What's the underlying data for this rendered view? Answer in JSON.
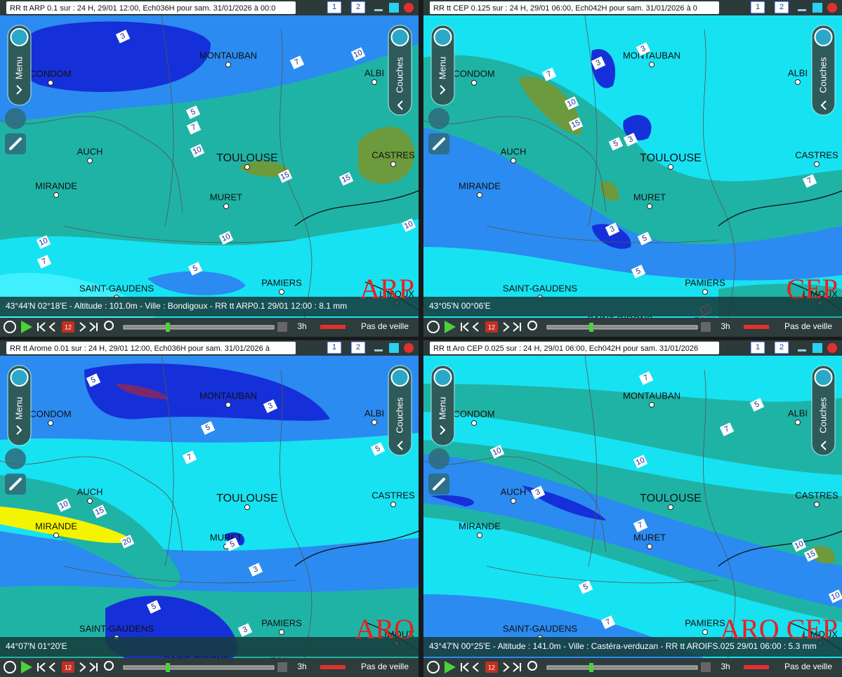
{
  "menu": "Menu",
  "layers": "Couches",
  "window_buttons": [
    "1",
    "2"
  ],
  "step": "3h",
  "watch": "Pas de veille",
  "day": "12",
  "panels": [
    {
      "title": "RR tt ARP 0.1 sur : 24 H, 29/01 12:00, Ech036H pour sam. 31/01/2026 à 00:0",
      "model": "ARP",
      "status": "43°44'N 02°18'E - Altitude : 101.0m - Ville : Bondigoux -  RR tt ARP0.1 29/01 12:00 : 8.1 mm",
      "cities": [
        "CONDOM",
        "MONTAUBAN",
        "ALBI",
        "AUCH",
        "TOULOUSE",
        "CASTRES",
        "MIRANDE",
        "MURET",
        "SAINT-GAUDENS",
        "PAMIERS",
        "LIMOUX"
      ],
      "contours": [
        3,
        7,
        10,
        5,
        7,
        10,
        15,
        15,
        10,
        10,
        7,
        10,
        5
      ]
    },
    {
      "title": "RR tt CEP 0.125 sur : 24 H, 29/01 06:00, Ech042H pour sam. 31/01/2026 à 0",
      "model": "CEP",
      "status": "43°05'N 00°06'E",
      "cities": [
        "CONDOM",
        "MONTAUBAN",
        "ALBI",
        "AUCH",
        "TOULOUSE",
        "CASTRES",
        "MIRANDE",
        "MURET",
        "SAINT-GAUDENS",
        "PAMIERS",
        "LIMOUX",
        "SAINT-GIRONS",
        "FOIX"
      ],
      "contours": [
        3,
        3,
        7,
        10,
        15,
        5,
        3,
        7,
        3,
        5,
        5,
        10
      ]
    },
    {
      "title": "RR tt Arome 0.01 sur : 24 H, 29/01 12:00, Ech036H pour sam. 31/01/2026 à",
      "model": "ARO",
      "status": "44°07'N 01°20'E",
      "cities": [
        "CONDOM",
        "MONTAUBAN",
        "ALBI",
        "AUCH",
        "TOULOUSE",
        "CASTRES",
        "MIRANDE",
        "MURET",
        "SAINT-GAUDENS",
        "PAMIERS",
        "LIMOUX",
        "SAINT-GIRONS",
        "FOIX"
      ],
      "contours": [
        5,
        3,
        5,
        7,
        10,
        15,
        20,
        5,
        3,
        5,
        3,
        5
      ]
    },
    {
      "title": "RR tt Aro CEP 0.025 sur : 24 H, 29/01 06:00, Ech042H pour sam. 31/01/2026",
      "model": "ARO CEP",
      "status": "43°47'N 00°25'E - Altitude : 141.0m - Ville : Castéra-verduzan -  RR tt AROIFS.025 29/01 06:00 : 5.3 mm",
      "cities": [
        "CONDOM",
        "MONTAUBAN",
        "ALBI",
        "AUCH",
        "TOULOUSE",
        "CASTRES",
        "MIRANDE",
        "MURET",
        "SAINT-GAUDENS",
        "PAMIERS",
        "LIMOUX"
      ],
      "contours": [
        7,
        5,
        10,
        10,
        3,
        7,
        10,
        15,
        5,
        7,
        10,
        7
      ]
    }
  ]
}
